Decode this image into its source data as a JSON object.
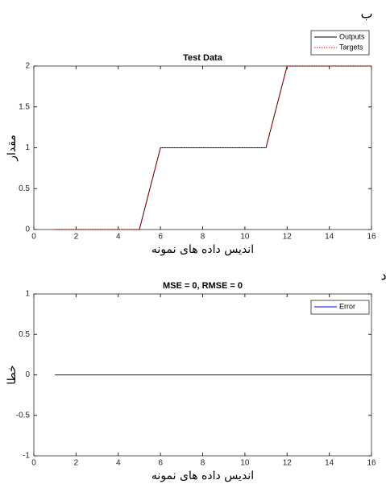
{
  "chart_data": [
    {
      "type": "line",
      "title": "Test Data",
      "panel_label": "ب",
      "xlabel": "اندیس داده های نمونه",
      "ylabel": "مقدار",
      "x": [
        1,
        2,
        3,
        4,
        5,
        6,
        7,
        8,
        9,
        10,
        11,
        12,
        13,
        14,
        15,
        16
      ],
      "series": [
        {
          "name": "Outputs",
          "color": "#000000",
          "style": "solid",
          "values": [
            0,
            0,
            0,
            0,
            0,
            1,
            1,
            1,
            1,
            1,
            1,
            2,
            2,
            2,
            2,
            2
          ]
        },
        {
          "name": "Targets",
          "color": "#ff0000",
          "style": "dotted",
          "values": [
            0,
            0,
            0,
            0,
            0,
            1,
            1,
            1,
            1,
            1,
            1,
            2,
            2,
            2,
            2,
            2
          ]
        }
      ],
      "xlim": [
        0,
        16
      ],
      "xticks": [
        0,
        2,
        4,
        6,
        8,
        10,
        12,
        14,
        16
      ],
      "ylim": [
        0,
        2
      ],
      "yticks": [
        0,
        0.5,
        1,
        1.5,
        2
      ],
      "legend": "outside-top-right"
    },
    {
      "type": "line",
      "title": "MSE = 0, RMSE = 0",
      "panel_label": "د",
      "xlabel": "اندیس داده های نمونه",
      "ylabel": "خطا",
      "x": [
        1,
        2,
        3,
        4,
        5,
        6,
        7,
        8,
        9,
        10,
        11,
        12,
        13,
        14,
        15,
        16
      ],
      "series": [
        {
          "name": "Error",
          "color": "#0000ff",
          "style": "solid",
          "values": [
            0,
            0,
            0,
            0,
            0,
            0,
            0,
            0,
            0,
            0,
            0,
            0,
            0,
            0,
            0,
            0
          ]
        }
      ],
      "xlim": [
        0,
        16
      ],
      "xticks": [
        0,
        2,
        4,
        6,
        8,
        10,
        12,
        14,
        16
      ],
      "ylim": [
        -1,
        1
      ],
      "yticks": [
        -1,
        -0.5,
        0,
        0.5,
        1
      ],
      "legend": "top-right"
    }
  ]
}
